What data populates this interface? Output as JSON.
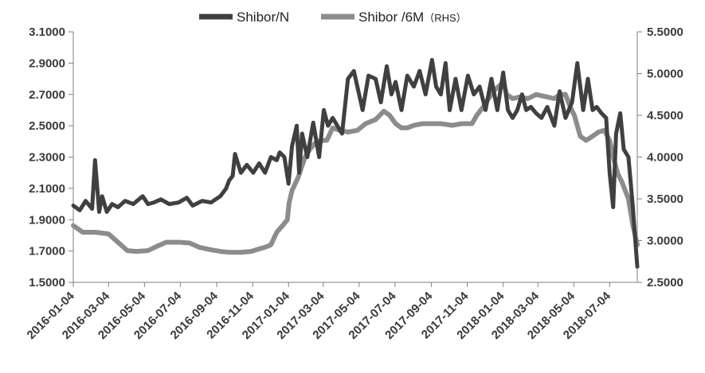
{
  "chart_data": {
    "type": "line",
    "title": "",
    "xlabel": "",
    "ylabel": "",
    "legend": {
      "position": "top-center",
      "items": [
        {
          "series": "Shibor/N",
          "label": "Shibor/N"
        },
        {
          "series": "Shibor/6M (RHS)",
          "label": "Shibor /6M",
          "suffix": "（RHS）"
        }
      ]
    },
    "x_ticks": [
      "2016-01-04",
      "2016-03-04",
      "2016-05-04",
      "2016-07-04",
      "2016-09-04",
      "2016-11-04",
      "2017-01-04",
      "2017-03-04",
      "2017-05-04",
      "2017-07-04",
      "2017-09-04",
      "2017-11-04",
      "2018-01-04",
      "2018-03-04",
      "2018-05-04",
      "2018-07-04"
    ],
    "x_range": [
      "2016-01-04",
      "2018-08-20"
    ],
    "y_left": {
      "min": 1.5,
      "max": 3.1,
      "ticks": [
        "1.5000",
        "1.7000",
        "1.9000",
        "2.1000",
        "2.3000",
        "2.5000",
        "2.7000",
        "2.9000",
        "3.1000"
      ]
    },
    "y_right": {
      "min": 2.5,
      "max": 5.5,
      "ticks": [
        "2.5000",
        "3.0000",
        "3.5000",
        "4.0000",
        "4.5000",
        "5.0000",
        "5.5000"
      ]
    },
    "grid": false,
    "colors": {
      "Shibor/N": "#404040",
      "Shibor/6M (RHS)": "#8c8c8c",
      "axis": "#7f7f7f"
    },
    "series": [
      {
        "name": "Shibor/N",
        "axis": "left",
        "x": [
          "2016-01-04",
          "2016-01-15",
          "2016-01-25",
          "2016-02-05",
          "2016-02-10",
          "2016-02-17",
          "2016-02-22",
          "2016-03-01",
          "2016-03-10",
          "2016-03-20",
          "2016-04-01",
          "2016-04-15",
          "2016-05-01",
          "2016-05-10",
          "2016-05-20",
          "2016-06-01",
          "2016-06-15",
          "2016-07-01",
          "2016-07-15",
          "2016-07-25",
          "2016-08-10",
          "2016-08-25",
          "2016-09-10",
          "2016-09-20",
          "2016-09-25",
          "2016-10-01",
          "2016-10-05",
          "2016-10-15",
          "2016-10-25",
          "2016-11-05",
          "2016-11-15",
          "2016-11-25",
          "2016-12-05",
          "2016-12-15",
          "2016-12-20",
          "2016-12-28",
          "2017-01-04",
          "2017-01-10",
          "2017-01-18",
          "2017-01-22",
          "2017-01-27",
          "2017-02-05",
          "2017-02-15",
          "2017-02-25",
          "2017-03-05",
          "2017-03-12",
          "2017-03-20",
          "2017-03-28",
          "2017-04-05",
          "2017-04-15",
          "2017-04-25",
          "2017-05-01",
          "2017-05-10",
          "2017-05-20",
          "2017-06-01",
          "2017-06-10",
          "2017-06-20",
          "2017-06-28",
          "2017-07-05",
          "2017-07-15",
          "2017-07-25",
          "2017-08-05",
          "2017-08-15",
          "2017-08-25",
          "2017-09-05",
          "2017-09-12",
          "2017-09-20",
          "2017-09-28",
          "2017-10-05",
          "2017-10-15",
          "2017-10-25",
          "2017-11-05",
          "2017-11-15",
          "2017-11-25",
          "2017-12-05",
          "2017-12-15",
          "2017-12-25",
          "2018-01-04",
          "2018-01-12",
          "2018-01-20",
          "2018-01-28",
          "2018-02-05",
          "2018-02-12",
          "2018-02-20",
          "2018-03-01",
          "2018-03-10",
          "2018-03-20",
          "2018-04-01",
          "2018-04-10",
          "2018-04-20",
          "2018-05-01",
          "2018-05-10",
          "2018-05-20",
          "2018-05-28",
          "2018-06-05",
          "2018-06-12",
          "2018-06-20",
          "2018-06-28",
          "2018-07-04",
          "2018-07-10",
          "2018-07-15",
          "2018-07-22",
          "2018-07-28",
          "2018-08-05",
          "2018-08-12",
          "2018-08-20"
        ],
        "values": [
          1.99,
          1.96,
          2.02,
          1.97,
          2.28,
          1.95,
          2.05,
          1.95,
          2.0,
          1.98,
          2.02,
          2.0,
          2.05,
          2.0,
          2.01,
          2.03,
          2.0,
          2.01,
          2.04,
          1.99,
          2.02,
          2.01,
          2.05,
          2.1,
          2.15,
          2.18,
          2.32,
          2.2,
          2.25,
          2.2,
          2.26,
          2.2,
          2.3,
          2.28,
          2.33,
          2.3,
          2.13,
          2.37,
          2.5,
          2.2,
          2.45,
          2.3,
          2.52,
          2.3,
          2.6,
          2.5,
          2.55,
          2.5,
          2.45,
          2.8,
          2.85,
          2.75,
          2.6,
          2.82,
          2.8,
          2.65,
          2.88,
          2.7,
          2.78,
          2.6,
          2.82,
          2.75,
          2.85,
          2.7,
          2.92,
          2.75,
          2.7,
          2.9,
          2.6,
          2.8,
          2.6,
          2.82,
          2.7,
          2.75,
          2.6,
          2.8,
          2.6,
          2.84,
          2.6,
          2.55,
          2.6,
          2.7,
          2.6,
          2.62,
          2.58,
          2.55,
          2.62,
          2.5,
          2.72,
          2.55,
          2.65,
          2.9,
          2.6,
          2.8,
          2.6,
          2.62,
          2.58,
          2.55,
          2.2,
          1.98,
          2.45,
          2.58,
          2.35,
          2.3,
          2.0,
          1.6
        ]
      },
      {
        "name": "Shibor/6M (RHS)",
        "axis": "right",
        "x": [
          "2016-01-04",
          "2016-01-20",
          "2016-02-10",
          "2016-03-04",
          "2016-03-20",
          "2016-04-05",
          "2016-04-20",
          "2016-05-10",
          "2016-05-25",
          "2016-06-10",
          "2016-07-04",
          "2016-07-20",
          "2016-08-05",
          "2016-08-25",
          "2016-09-10",
          "2016-09-25",
          "2016-10-15",
          "2016-11-01",
          "2016-11-15",
          "2016-11-25",
          "2016-12-05",
          "2016-12-15",
          "2016-12-25",
          "2017-01-02",
          "2017-01-05",
          "2017-01-10",
          "2017-01-20",
          "2017-02-01",
          "2017-02-10",
          "2017-02-20",
          "2017-03-01",
          "2017-03-10",
          "2017-03-20",
          "2017-04-01",
          "2017-04-15",
          "2017-05-01",
          "2017-05-15",
          "2017-06-01",
          "2017-06-15",
          "2017-06-25",
          "2017-07-05",
          "2017-07-15",
          "2017-07-25",
          "2017-08-05",
          "2017-08-20",
          "2017-09-04",
          "2017-09-20",
          "2017-10-10",
          "2017-10-25",
          "2017-11-04",
          "2017-11-12",
          "2017-11-20",
          "2017-12-01",
          "2017-12-10",
          "2017-12-20",
          "2017-12-28",
          "2018-01-04",
          "2018-01-10",
          "2018-01-20",
          "2018-02-01",
          "2018-02-15",
          "2018-03-01",
          "2018-03-20",
          "2018-04-01",
          "2018-04-10",
          "2018-04-20",
          "2018-04-28",
          "2018-05-05",
          "2018-05-15",
          "2018-05-25",
          "2018-06-05",
          "2018-06-15",
          "2018-06-25",
          "2018-07-04",
          "2018-07-10",
          "2018-07-18",
          "2018-07-25",
          "2018-08-05",
          "2018-08-12",
          "2018-08-20"
        ],
        "values": [
          3.18,
          3.1,
          3.1,
          3.08,
          2.98,
          2.88,
          2.87,
          2.88,
          2.93,
          2.98,
          2.98,
          2.97,
          2.92,
          2.89,
          2.87,
          2.86,
          2.86,
          2.87,
          2.9,
          2.92,
          2.95,
          3.1,
          3.18,
          3.25,
          3.45,
          3.6,
          3.75,
          4.0,
          4.1,
          4.18,
          4.2,
          4.2,
          4.35,
          4.32,
          4.3,
          4.32,
          4.4,
          4.45,
          4.55,
          4.5,
          4.4,
          4.35,
          4.35,
          4.38,
          4.4,
          4.4,
          4.4,
          4.38,
          4.4,
          4.4,
          4.4,
          4.5,
          4.6,
          4.7,
          4.8,
          4.85,
          4.9,
          4.75,
          4.7,
          4.72,
          4.7,
          4.75,
          4.72,
          4.7,
          4.75,
          4.75,
          4.6,
          4.5,
          4.25,
          4.2,
          4.25,
          4.3,
          4.32,
          4.2,
          4.0,
          3.8,
          3.7,
          3.5,
          3.2,
          2.95
        ]
      }
    ]
  }
}
